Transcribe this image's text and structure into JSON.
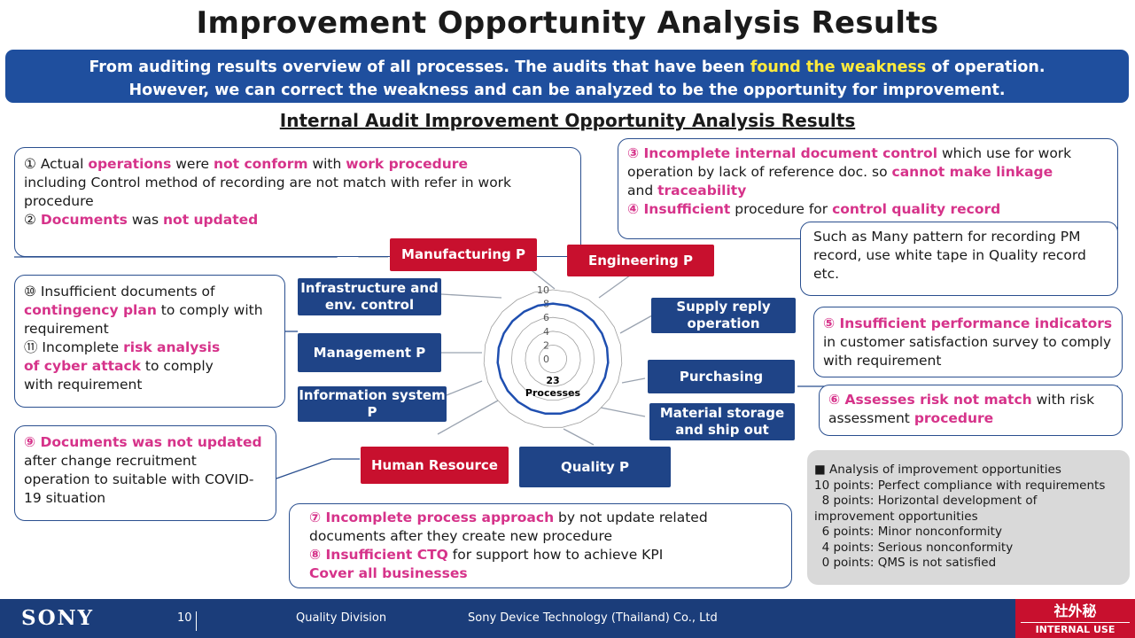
{
  "title": "Improvement Opportunity Analysis Results",
  "banner": {
    "line1_a": "From auditing results overview of all processes. The audits that have been ",
    "line1_hl": "found the weakness",
    "line1_b": " of operation.",
    "line2": "However, we can correct the weakness and can be analyzed to be the opportunity for improvement."
  },
  "subtitle": "Internal Audit Improvement Opportunity Analysis Results",
  "notes": {
    "n1": {
      "p1": "① Actual ",
      "p2": "operations",
      "p3": " were ",
      "p4": "not conform",
      "p5": " with ",
      "p6": "work procedure",
      "p7": "including Control method of recording are not match with refer in work procedure",
      "p8": "② ",
      "p9": "Documents",
      "p10": " was ",
      "p11": "not updated"
    },
    "n3": {
      "p1": "③ Incomplete internal document control",
      "p2": " which use for work operation by lack of reference doc. so ",
      "p3": "cannot make linkage",
      "p4": "and ",
      "p5": "traceability",
      "p6": "④ Insufficient",
      "p7": " procedure for ",
      "p8": "control quality record"
    },
    "n3b": "Such as Many pattern for recording PM record, use white tape in Quality record etc.",
    "n10": {
      "p1": "⑩ Insufficient documents of ",
      "p2": "contingency plan",
      "p3": " to comply with requirement",
      "p4": "⑪ Incomplete ",
      "p5": "risk analysis",
      "p6": "of cyber attack",
      "p7": " to comply",
      "p8": "with requirement"
    },
    "n5": {
      "p1": "⑤ Insufficient performance indicators",
      "p2": " in customer satisfaction survey to comply with requirement"
    },
    "n6": {
      "p1": "⑥ Assesses risk not match",
      "p2": " with risk assessment ",
      "p3": "procedure"
    },
    "n9": {
      "p1": "⑨ Documents was not updated",
      "p2": " after change recruitment operation to suitable with COVID-19 situation"
    },
    "n7": {
      "p1": "⑦ Incomplete process approach",
      "p2": " by not update related documents after they create new procedure",
      "p3": "⑧ Insufficient CTQ",
      "p4": " for support how to achieve KPI",
      "p5": "Cover all businesses"
    }
  },
  "categories": {
    "manufacturing": "Manufacturing P",
    "engineering": "Engineering P",
    "infrastructure": "Infrastructure and env. control",
    "supply": "Supply reply operation",
    "management": "Management P",
    "purchasing": "Purchasing",
    "information": "Information system P",
    "material": "Material storage and ship out",
    "human": "Human Resource",
    "quality": "Quality P"
  },
  "chart_data": {
    "type": "radar",
    "center_label": "23\nProcesses",
    "ticks": [
      "10",
      "8",
      "6",
      "4",
      "2",
      "0"
    ],
    "range": [
      0,
      10
    ],
    "series": [
      {
        "values": [
          8,
          8,
          8,
          8,
          8,
          8,
          8,
          8,
          8,
          8,
          8,
          8,
          8,
          8,
          8,
          8,
          8,
          8,
          8,
          8,
          8,
          8,
          8
        ]
      }
    ],
    "colors": {
      "series": "#1f4fb0",
      "grid": "#a0a0a0"
    }
  },
  "legend": {
    "head": "■  Analysis of improvement opportunities",
    "l10": "10 points: Perfect compliance with requirements",
    "l8": "  8 points: Horizontal development of",
    "l8b": "improvement opportunities",
    "l6": "  6 points: Minor nonconformity",
    "l4": "  4 points: Serious nonconformity",
    "l0": "  0 points: QMS is not satisfied"
  },
  "footer": {
    "brand": "SONY",
    "page": "10",
    "division": "Quality Division",
    "company": "Sony Device Technology (Thailand) Co., Ltd",
    "iuo_jp": "社外秘",
    "iuo_en": "INTERNAL USE ONLY"
  }
}
